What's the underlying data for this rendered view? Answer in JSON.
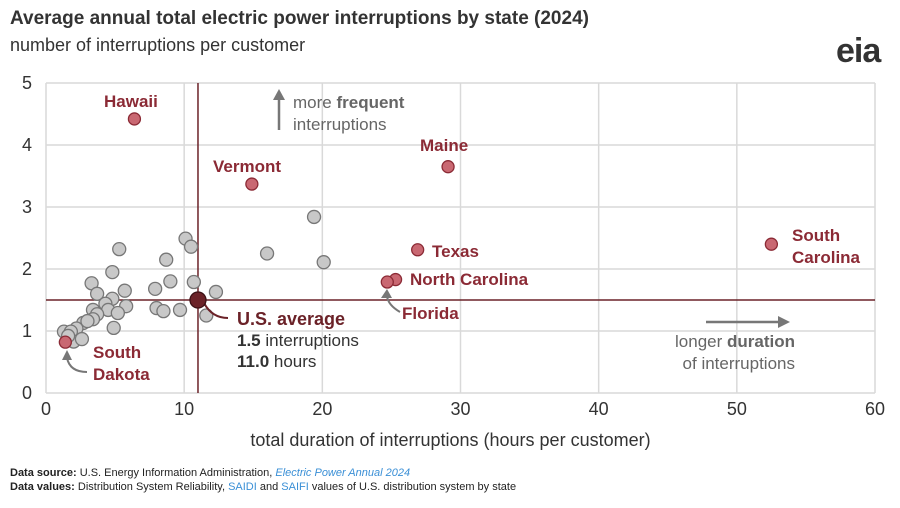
{
  "title": "Average annual total electric power interruptions by state (2024)",
  "subtitle": "number of interruptions per customer",
  "logo": "eia",
  "footer": {
    "source_label": "Data source:",
    "source_text": "U.S. Energy Information Administration,",
    "source_link": "Electric Power Annual 2024",
    "values_label": "Data values:",
    "values_text1": "Distribution System Reliability,",
    "saidi": "SAIDI",
    "and": "and",
    "saifi": "SAIFI",
    "values_text2": "values of U.S. distribution system by state"
  },
  "colors": {
    "highlight": "#8b2a35",
    "highlight_fill": "#c96872",
    "point": "#c8c8c8",
    "average": "#6b2228",
    "grid": "#d9d9d9",
    "arrow": "#777777"
  },
  "chart_data": {
    "type": "scatter",
    "xlabel": "total duration of interruptions (hours per customer)",
    "ylabel": "",
    "xlim": [
      0,
      60
    ],
    "ylim": [
      0,
      5
    ],
    "xticks": [
      0,
      10,
      20,
      30,
      40,
      50,
      60
    ],
    "yticks": [
      0,
      1,
      2,
      3,
      4,
      5
    ],
    "grid": true,
    "average": {
      "label": "U.S. average",
      "x": 11.0,
      "y": 1.5,
      "line1_value": "1.5",
      "line1_unit": "interruptions",
      "line2_value": "11.0",
      "line2_unit": "hours"
    },
    "highlighted": [
      {
        "name": "Hawaii",
        "x": 6.4,
        "y": 4.42
      },
      {
        "name": "Vermont",
        "x": 14.9,
        "y": 3.37
      },
      {
        "name": "Maine",
        "x": 29.1,
        "y": 3.65
      },
      {
        "name": "Texas",
        "x": 26.9,
        "y": 2.31
      },
      {
        "name": "North Carolina",
        "x": 25.3,
        "y": 1.83
      },
      {
        "name": "Florida",
        "x": 24.7,
        "y": 1.79
      },
      {
        "name": "South Carolina",
        "x": 52.5,
        "y": 2.4
      },
      {
        "name": "South Dakota",
        "x": 1.4,
        "y": 0.82
      }
    ],
    "others": [
      [
        5.3,
        2.32
      ],
      [
        10.1,
        2.49
      ],
      [
        10.5,
        2.36
      ],
      [
        8.7,
        2.15
      ],
      [
        16.0,
        2.25
      ],
      [
        20.1,
        2.11
      ],
      [
        19.4,
        2.84
      ],
      [
        4.8,
        1.95
      ],
      [
        3.3,
        1.77
      ],
      [
        9.0,
        1.8
      ],
      [
        7.9,
        1.68
      ],
      [
        10.7,
        1.79
      ],
      [
        12.3,
        1.63
      ],
      [
        5.7,
        1.65
      ],
      [
        3.7,
        1.6
      ],
      [
        4.8,
        1.52
      ],
      [
        4.3,
        1.44
      ],
      [
        5.8,
        1.4
      ],
      [
        8.0,
        1.37
      ],
      [
        8.5,
        1.32
      ],
      [
        9.7,
        1.34
      ],
      [
        11.6,
        1.25
      ],
      [
        4.5,
        1.34
      ],
      [
        5.2,
        1.29
      ],
      [
        3.4,
        1.34
      ],
      [
        3.7,
        1.27
      ],
      [
        3.4,
        1.19
      ],
      [
        2.7,
        1.13
      ],
      [
        2.2,
        1.04
      ],
      [
        4.9,
        1.05
      ],
      [
        1.3,
        0.99
      ],
      [
        1.8,
        0.99
      ],
      [
        2.0,
        0.83
      ],
      [
        2.6,
        0.87
      ],
      [
        1.6,
        0.92
      ],
      [
        3.0,
        1.16
      ]
    ],
    "annotations": {
      "frequent": {
        "pre": "more",
        "bold": "frequent",
        "post": "interruptions"
      },
      "duration": {
        "pre": "longer",
        "bold": "duration",
        "post": "of interruptions"
      }
    }
  }
}
